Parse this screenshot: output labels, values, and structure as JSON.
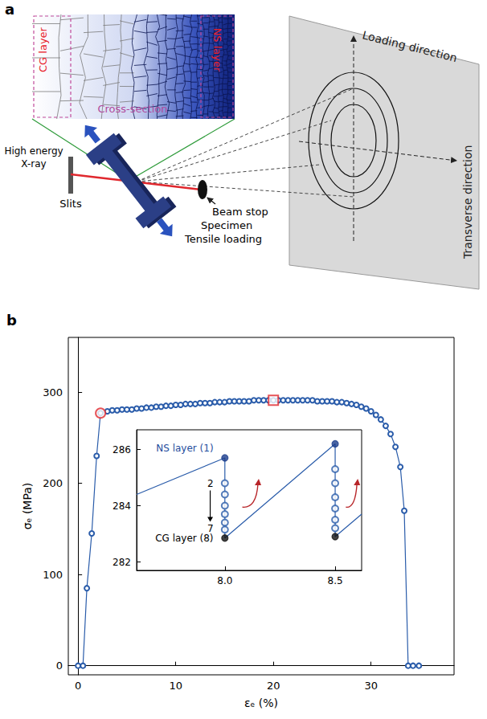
{
  "diagram": {
    "panel": "a",
    "cross_section": {
      "left": "CG layer",
      "middle": "Cross-section",
      "right": "NS layer"
    },
    "setup": {
      "source": [
        "High energy",
        "X-ray"
      ],
      "slits": "Slits",
      "beam_stop": "Beam stop",
      "specimen": "Specimen",
      "loading": "Tensile loading"
    },
    "detector": {
      "vertical": "Loading direction",
      "horizontal": "Transverse direction"
    }
  },
  "chart_data": [
    {
      "type": "line",
      "panel": "b",
      "xlabel": "εₑ (%)",
      "ylabel": "σₑ (MPa)",
      "xlim": [
        -1,
        38.5
      ],
      "xticks": [
        0,
        10,
        20,
        30
      ],
      "ylim": [
        -10,
        360
      ],
      "yticks": [
        0,
        100,
        200,
        300
      ],
      "grid": false,
      "series": [
        {
          "type": "line",
          "color": "#2a5caa",
          "marker": "open_circle",
          "line_style": "solid",
          "x": [
            0,
            0.5,
            0.9,
            1.4,
            1.9,
            2.3,
            3.0,
            3.5,
            4.0,
            4.5,
            5.0,
            5.5,
            6.0,
            6.5,
            7.0,
            7.5,
            8.0,
            8.5,
            9.0,
            9.5,
            10.0,
            10.5,
            11.0,
            11.5,
            12.0,
            12.5,
            13.0,
            13.5,
            14.0,
            14.5,
            15.0,
            15.5,
            16.0,
            16.5,
            17.0,
            17.5,
            18.0,
            18.5,
            19.0,
            19.5,
            20.0,
            20.5,
            21.0,
            21.5,
            22.0,
            22.5,
            23.0,
            23.5,
            24.0,
            24.5,
            25.0,
            25.5,
            26.0,
            26.5,
            27.0,
            27.5,
            28.0,
            28.5,
            29.0,
            29.5,
            30.0,
            30.5,
            31.0,
            31.5,
            32.0,
            32.5,
            33.0,
            33.4,
            33.8,
            34.3,
            34.9
          ],
          "values": [
            0,
            0,
            85,
            145,
            230,
            277,
            279,
            280,
            280,
            281,
            281,
            281,
            282,
            282,
            283,
            283,
            284,
            284,
            285,
            285,
            286,
            286,
            287,
            287,
            287,
            288,
            288,
            288,
            289,
            289,
            289,
            290,
            290,
            290,
            290,
            290,
            291,
            291,
            291,
            291,
            291,
            291,
            291,
            291,
            291,
            291,
            291,
            291,
            291,
            290,
            290,
            290,
            290,
            289,
            289,
            288,
            287,
            286,
            284,
            282,
            279,
            275,
            270,
            263,
            254,
            240,
            218,
            170,
            0,
            0,
            0
          ]
        },
        {
          "type": "scatter",
          "color": "#e0282e",
          "marker": "open_circle",
          "x": [
            2.3
          ],
          "values": [
            277
          ]
        },
        {
          "type": "scatter",
          "color": "#e0282e",
          "marker": "open_square",
          "x": [
            20
          ],
          "values": [
            291
          ]
        }
      ]
    },
    {
      "type": "line",
      "xlim": [
        7.6,
        8.62
      ],
      "xticks": [
        {
          "value": 8,
          "label": "8.0"
        },
        8.5
      ],
      "ylim": [
        281.7,
        286.7
      ],
      "yticks": [
        282,
        284,
        286
      ],
      "grid": false,
      "series": [
        {
          "type": "line",
          "color": "#2a5caa",
          "marker": "none",
          "line_style": "solid",
          "x": [
            7.6,
            8,
            8,
            8,
            8,
            8,
            8,
            8,
            8,
            8.5,
            8.5,
            8.5,
            8.5,
            8.5,
            8.5,
            8.5,
            8.5,
            8.62
          ],
          "values": [
            284.4,
            285.7,
            284.8,
            284.4,
            284,
            283.7,
            283.4,
            283.15,
            282.85,
            286.2,
            285.3,
            284.8,
            284.3,
            283.9,
            283.5,
            283.2,
            282.9,
            283.7
          ]
        },
        {
          "type": "scatter",
          "color": "#2a5caa",
          "marker": "open_circle",
          "x": [
            8,
            8,
            8,
            8,
            8,
            8,
            8.5,
            8.5,
            8.5,
            8.5,
            8.5,
            8.5
          ],
          "values": [
            284.8,
            284.4,
            284,
            283.7,
            283.4,
            283.15,
            285.3,
            284.8,
            284.3,
            283.9,
            283.5,
            283.2
          ]
        },
        {
          "type": "scatter",
          "color": "#1c3d8c",
          "marker": "circle",
          "x": [
            8,
            8.5
          ],
          "values": [
            285.7,
            286.2
          ]
        },
        {
          "type": "scatter",
          "color": "#111111",
          "marker": "circle",
          "x": [
            8,
            8.5
          ],
          "values": [
            282.85,
            282.9
          ]
        }
      ],
      "annotations": [
        {
          "text": "NS layer (1)",
          "x": 7.97,
          "y": 286.05,
          "color": "#1f4e9e"
        },
        {
          "text": "2",
          "x": 7.97,
          "y": 284.8,
          "color": "#000000"
        },
        {
          "text": "7",
          "x": 7.97,
          "y": 283.2,
          "color": "#000000"
        },
        {
          "text": "CG layer (8)",
          "x": 7.97,
          "y": 282.85,
          "color": "#000000"
        }
      ]
    }
  ]
}
